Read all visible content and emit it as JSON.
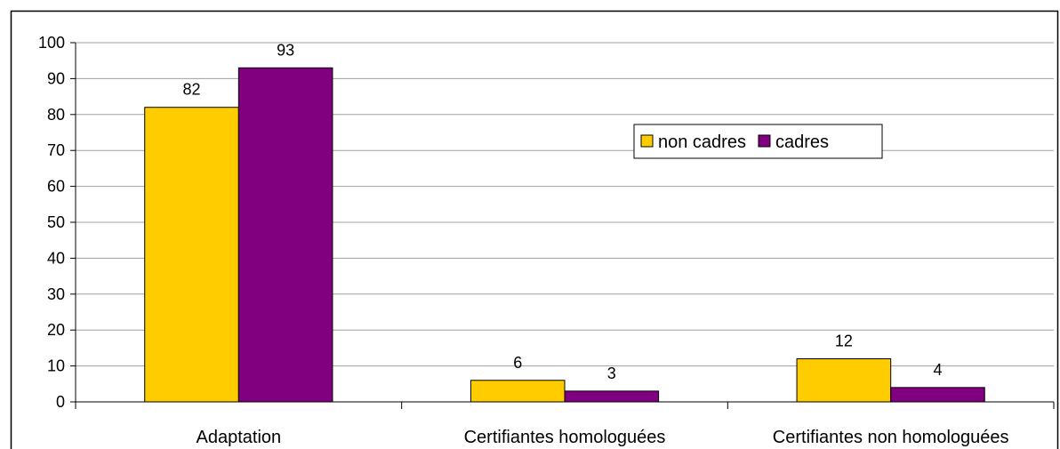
{
  "chart_data": {
    "type": "bar",
    "categories": [
      "Adaptation",
      "Certifiantes homologuées",
      "Certifiantes non homologuées"
    ],
    "series": [
      {
        "name": "non cadres",
        "values": [
          82,
          6,
          12
        ],
        "color": "#FFCC00"
      },
      {
        "name": "cadres",
        "values": [
          93,
          3,
          4
        ],
        "color": "#800080"
      }
    ],
    "ylim": [
      0,
      100
    ],
    "yticks": [
      0,
      10,
      20,
      30,
      40,
      50,
      60,
      70,
      80,
      90,
      100
    ],
    "grid": true,
    "legend_position": "right",
    "data_labels": true
  }
}
